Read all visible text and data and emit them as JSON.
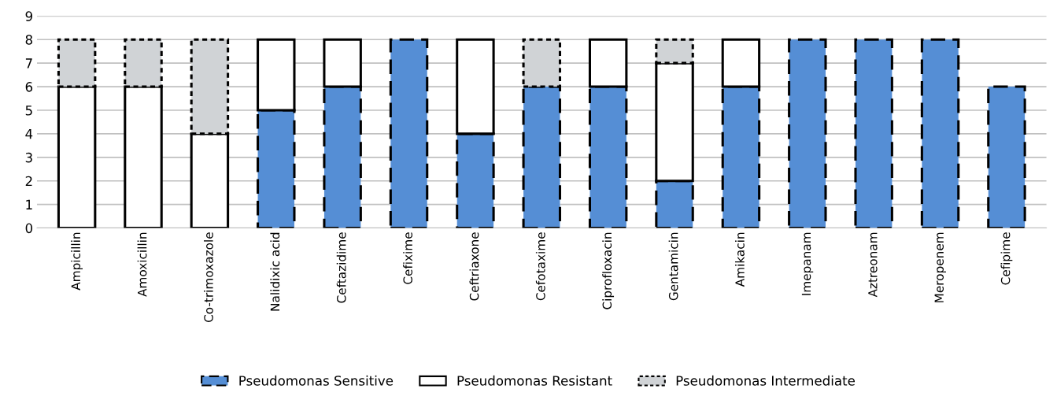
{
  "chart_data": {
    "type": "bar",
    "stacked": true,
    "categories": [
      "Ampicillin",
      "Amoxicillin",
      "Co-trimoxazole",
      "Nalidixic acid",
      "Ceftazidime",
      "Cefixime",
      "Ceftriaxone",
      "Cefotaxime",
      "Ciprofloxacin",
      "Gentamicin",
      "Amikacin",
      "Imepanam",
      "Aztreonam",
      "Meropenem",
      "Cefipime"
    ],
    "series": [
      {
        "name": "Pseudomonas Sensitive",
        "color": "#558ed5",
        "line_style": "dashed",
        "values": [
          0,
          0,
          0,
          5,
          6,
          8,
          4,
          6,
          6,
          2,
          6,
          8,
          8,
          8,
          6
        ]
      },
      {
        "name": "Pseudomonas Resistant",
        "color": "#ffffff",
        "line_style": "solid",
        "values": [
          6,
          6,
          4,
          3,
          2,
          0,
          4,
          0,
          2,
          5,
          2,
          0,
          0,
          0,
          0
        ]
      },
      {
        "name": "Pseudomonas Intermediate",
        "color": "#d0d3d6",
        "line_style": "dotted",
        "values": [
          2,
          2,
          4,
          0,
          0,
          0,
          0,
          2,
          0,
          1,
          0,
          0,
          0,
          0,
          0
        ]
      }
    ],
    "ylim": [
      0,
      9
    ],
    "yticks": [
      0,
      1,
      2,
      3,
      4,
      5,
      6,
      7,
      8,
      9
    ],
    "grid": "y",
    "legend": "bottom"
  }
}
